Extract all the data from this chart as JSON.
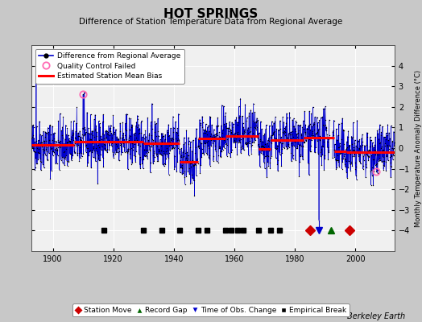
{
  "title": "HOT SPRINGS",
  "subtitle": "Difference of Station Temperature Data from Regional Average",
  "ylabel": "Monthly Temperature Anomaly Difference (°C)",
  "xlabel_years": [
    1900,
    1920,
    1940,
    1960,
    1980,
    2000
  ],
  "xlim": [
    1893,
    2013
  ],
  "ylim": [
    -5,
    5
  ],
  "yticks": [
    -4,
    -3,
    -2,
    -1,
    0,
    1,
    2,
    3,
    4
  ],
  "background_color": "#c8c8c8",
  "plot_bg_color": "#f0f0f0",
  "grid_color": "#ffffff",
  "line_color": "#0000cc",
  "bias_color": "#ff0000",
  "marker_color": "#000000",
  "qc_color": "#ff69b4",
  "station_move_color": "#cc0000",
  "record_gap_color": "#006600",
  "obs_change_color": "#0000cc",
  "empirical_break_color": "#000000",
  "bias_segments": [
    {
      "x": [
        1893,
        1907
      ],
      "y": [
        0.15,
        0.15
      ]
    },
    {
      "x": [
        1907,
        1930
      ],
      "y": [
        0.3,
        0.3
      ]
    },
    {
      "x": [
        1930,
        1942
      ],
      "y": [
        0.25,
        0.25
      ]
    },
    {
      "x": [
        1942,
        1948
      ],
      "y": [
        -0.65,
        -0.65
      ]
    },
    {
      "x": [
        1948,
        1957
      ],
      "y": [
        0.45,
        0.45
      ]
    },
    {
      "x": [
        1957,
        1968
      ],
      "y": [
        0.6,
        0.6
      ]
    },
    {
      "x": [
        1968,
        1972
      ],
      "y": [
        -0.05,
        -0.05
      ]
    },
    {
      "x": [
        1972,
        1983
      ],
      "y": [
        0.4,
        0.4
      ]
    },
    {
      "x": [
        1983,
        1993
      ],
      "y": [
        0.5,
        0.5
      ]
    },
    {
      "x": [
        1993,
        1997
      ],
      "y": [
        -0.15,
        -0.15
      ]
    },
    {
      "x": [
        1997,
        2013
      ],
      "y": [
        -0.2,
        -0.2
      ]
    }
  ],
  "empirical_breaks": [
    1917,
    1930,
    1936,
    1942,
    1948,
    1951,
    1957,
    1959,
    1961,
    1963,
    1968,
    1972,
    1975
  ],
  "station_moves": [
    1985,
    1998
  ],
  "record_gaps": [
    1992
  ],
  "obs_changes": [
    1988
  ],
  "obs_change_line_top": -3.5,
  "qc_failed": [
    1910,
    2007
  ],
  "qc_failed_values": [
    2.6,
    -1.15
  ],
  "event_y": -4.0,
  "berkeleyearth_text": "Berkeley Earth"
}
